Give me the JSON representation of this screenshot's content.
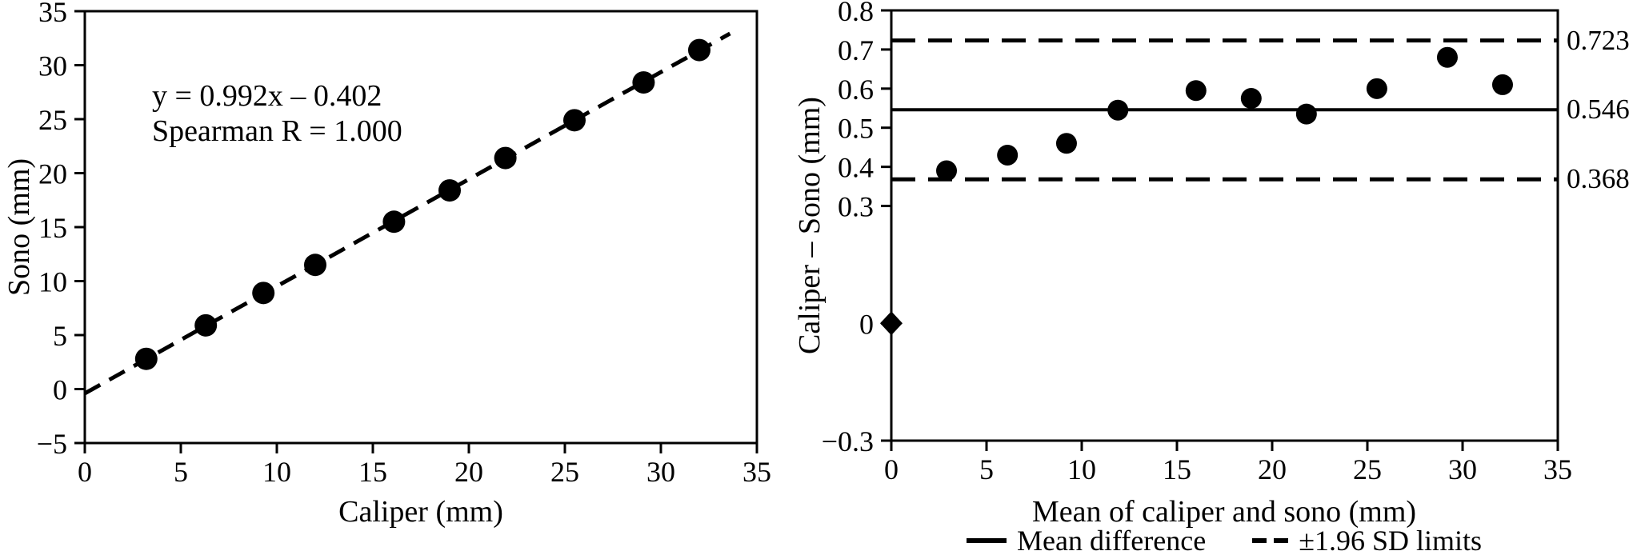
{
  "colors": {
    "ink": "#000000",
    "background": "#ffffff"
  },
  "chart_data": [
    {
      "type": "scatter",
      "panel": "left",
      "title": "",
      "xlabel": "Caliper (mm)",
      "ylabel": "Sono (mm)",
      "xlim": [
        0,
        35
      ],
      "ylim": [
        -5,
        35
      ],
      "grid": false,
      "x_ticks": {
        "values": [
          0,
          5,
          10,
          15,
          20,
          25,
          30,
          35
        ],
        "labels": [
          "0",
          "5",
          "10",
          "15",
          "20",
          "25",
          "30",
          "35"
        ]
      },
      "y_ticks": {
        "values": [
          35,
          30,
          25,
          20,
          15,
          10,
          5,
          0,
          -5
        ],
        "labels": [
          "35",
          "30",
          "25",
          "20",
          "15",
          "10",
          "5",
          "0",
          "−5"
        ]
      },
      "annotation": {
        "line1": "y = 0.992x – 0.402",
        "line2": "Spearman R = 1.000"
      },
      "series": [
        {
          "name": "caliper-vs-sono",
          "marker": "circle",
          "x": [
            3.2,
            6.3,
            9.3,
            12.0,
            16.1,
            19.0,
            21.9,
            25.5,
            29.1,
            32.0
          ],
          "y": [
            2.8,
            5.9,
            8.9,
            11.5,
            15.5,
            18.4,
            21.4,
            24.9,
            28.4,
            31.4
          ]
        }
      ],
      "regression_line": {
        "slope": 0.992,
        "intercept": -0.402,
        "style": "dashed",
        "x_start": 0,
        "x_end": 33.6
      },
      "legend_position": "none"
    },
    {
      "type": "scatter",
      "panel": "right",
      "title": "",
      "xlabel": "Mean of caliper and sono (mm)",
      "ylabel": "Caliper – Sono (mm)",
      "xlim": [
        0,
        35
      ],
      "ylim": [
        -0.3,
        0.8
      ],
      "grid": false,
      "x_ticks": {
        "values": [
          0,
          5,
          10,
          15,
          20,
          25,
          30,
          35
        ],
        "labels": [
          "0",
          "5",
          "10",
          "15",
          "20",
          "25",
          "30",
          "35"
        ]
      },
      "y_ticks": {
        "values": [
          0.8,
          0.7,
          0.6,
          0.5,
          0.4,
          0.3,
          0,
          -0.3
        ],
        "labels": [
          "0.8",
          "0.7",
          "0.6",
          "0.5",
          "0.4",
          "0.3",
          "0",
          "−0.3"
        ]
      },
      "series": [
        {
          "name": "difference-vs-mean",
          "marker": "circle",
          "x": [
            2.9,
            6.1,
            9.2,
            11.9,
            16.0,
            18.9,
            21.8,
            25.5,
            29.2,
            32.1
          ],
          "y": [
            0.39,
            0.43,
            0.46,
            0.545,
            0.595,
            0.575,
            0.535,
            0.6,
            0.68,
            0.61
          ]
        }
      ],
      "special_markers": [
        {
          "marker": "diamond",
          "x": 0,
          "y": 0
        }
      ],
      "reference_lines": [
        {
          "name": "upper-limit",
          "value": 0.723,
          "style": "dashed",
          "label": "0.723"
        },
        {
          "name": "mean-difference",
          "value": 0.546,
          "style": "solid",
          "label": "0.546"
        },
        {
          "name": "lower-limit",
          "value": 0.368,
          "style": "dashed",
          "label": "0.368"
        }
      ],
      "legend": [
        {
          "label": "Mean difference",
          "style": "solid"
        },
        {
          "label": "±1.96 SD limits",
          "style": "dashed"
        }
      ],
      "legend_position": "bottom"
    }
  ]
}
